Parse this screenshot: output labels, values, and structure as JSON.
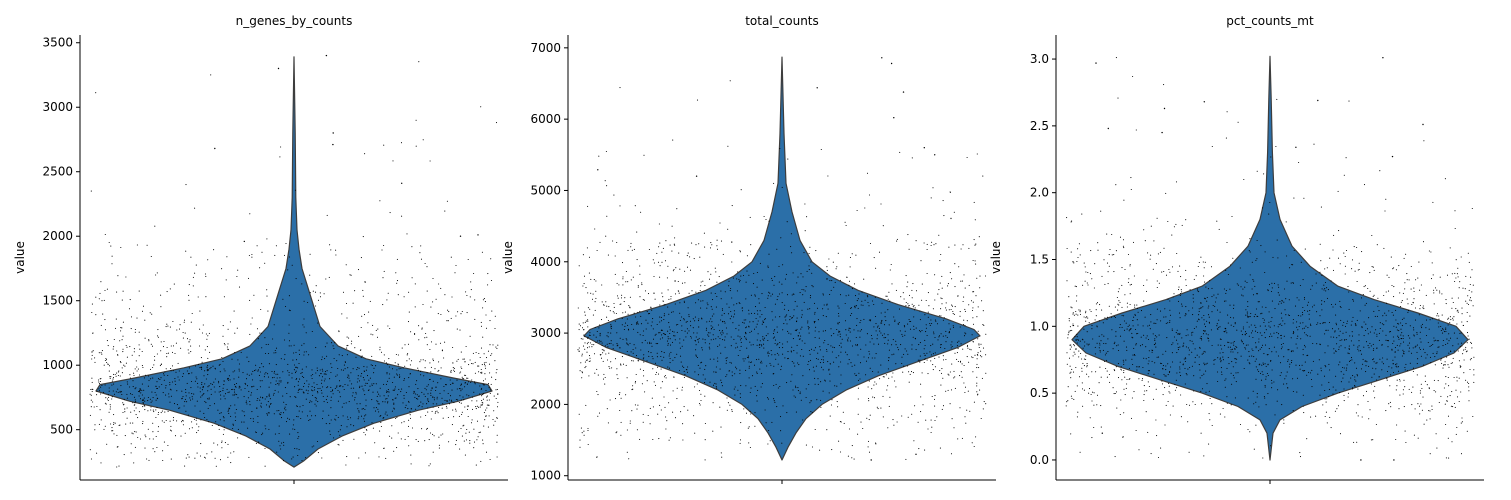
{
  "chart_data": [
    {
      "type": "violin",
      "title": "n_genes_by_counts",
      "ylabel": "value",
      "ylim": [
        110,
        3560
      ],
      "yticks": [
        500,
        1000,
        1500,
        2000,
        2500,
        3000,
        3500
      ],
      "ytick_labels": [
        "500",
        "1000",
        "1500",
        "2000",
        "2500",
        "3000",
        "3500"
      ],
      "min": 210,
      "max": 3390,
      "color": "#2b6fa8",
      "profile": [
        {
          "v": 210,
          "w": 0.0
        },
        {
          "v": 260,
          "w": 0.05
        },
        {
          "v": 350,
          "w": 0.12
        },
        {
          "v": 450,
          "w": 0.24
        },
        {
          "v": 550,
          "w": 0.4
        },
        {
          "v": 650,
          "w": 0.62
        },
        {
          "v": 720,
          "w": 0.82
        },
        {
          "v": 800,
          "w": 0.99
        },
        {
          "v": 850,
          "w": 0.97
        },
        {
          "v": 900,
          "w": 0.8
        },
        {
          "v": 980,
          "w": 0.55
        },
        {
          "v": 1050,
          "w": 0.36
        },
        {
          "v": 1150,
          "w": 0.22
        },
        {
          "v": 1300,
          "w": 0.13
        },
        {
          "v": 1450,
          "w": 0.1
        },
        {
          "v": 1600,
          "w": 0.07
        },
        {
          "v": 1750,
          "w": 0.04
        },
        {
          "v": 1900,
          "w": 0.025
        },
        {
          "v": 2050,
          "w": 0.015
        },
        {
          "v": 2300,
          "w": 0.009
        },
        {
          "v": 2800,
          "w": 0.006
        },
        {
          "v": 3390,
          "w": 0.0
        }
      ],
      "points": [
        {
          "rel": [
            640,
            780,
            810,
            950,
            560,
            880,
            720,
            1000,
            430,
            1150,
            830,
            690,
            900,
            610,
            760,
            1080,
            350,
            1250,
            820,
            740,
            980,
            520,
            870,
            1400,
            660,
            790,
            1020,
            450,
            930,
            700,
            1550,
            840,
            590,
            760,
            1100,
            380,
            960,
            810,
            720,
            1300,
            650,
            890,
            1700,
            540,
            780,
            860,
            1000,
            470,
            730,
            1200,
            620,
            850,
            910,
            330,
            1050,
            770,
            690,
            1450,
            800,
            580,
            940,
            1180,
            500,
            760,
            870,
            1600,
            710,
            830,
            420,
            990,
            640,
            780,
            1350,
            560,
            900,
            740,
            820,
            1900,
            680,
            1050
          ]
        }
      ],
      "outliers": [
        2710,
        3300,
        2800,
        2410,
        2680,
        3400,
        2010,
        1960,
        2000
      ]
    },
    {
      "type": "violin",
      "title": "total_counts",
      "ylabel": "value",
      "ylim": [
        940,
        7180
      ],
      "yticks": [
        1000,
        2000,
        3000,
        4000,
        5000,
        6000,
        7000
      ],
      "ytick_labels": [
        "1000",
        "2000",
        "3000",
        "4000",
        "5000",
        "6000",
        "7000"
      ],
      "min": 1220,
      "max": 6870,
      "color": "#2b6fa8",
      "profile": [
        {
          "v": 1220,
          "w": 0.0
        },
        {
          "v": 1400,
          "w": 0.03
        },
        {
          "v": 1600,
          "w": 0.07
        },
        {
          "v": 1800,
          "w": 0.12
        },
        {
          "v": 2000,
          "w": 0.2
        },
        {
          "v": 2200,
          "w": 0.32
        },
        {
          "v": 2400,
          "w": 0.48
        },
        {
          "v": 2600,
          "w": 0.68
        },
        {
          "v": 2800,
          "w": 0.88
        },
        {
          "v": 2960,
          "w": 0.99
        },
        {
          "v": 3050,
          "w": 0.96
        },
        {
          "v": 3200,
          "w": 0.82
        },
        {
          "v": 3400,
          "w": 0.58
        },
        {
          "v": 3600,
          "w": 0.38
        },
        {
          "v": 3800,
          "w": 0.24
        },
        {
          "v": 4000,
          "w": 0.15
        },
        {
          "v": 4300,
          "w": 0.09
        },
        {
          "v": 4700,
          "w": 0.05
        },
        {
          "v": 5100,
          "w": 0.02
        },
        {
          "v": 5800,
          "w": 0.01
        },
        {
          "v": 6870,
          "w": 0.0
        }
      ],
      "outliers": [
        6780,
        6380,
        6020,
        5290,
        6860,
        6440,
        5600,
        5500,
        5200,
        1220,
        1300
      ]
    },
    {
      "type": "violin",
      "title": "pct_counts_mt",
      "ylabel": "value",
      "ylim": [
        -0.15,
        3.18
      ],
      "yticks": [
        0.0,
        0.5,
        1.0,
        1.5,
        2.0,
        2.5,
        3.0
      ],
      "ytick_labels": [
        "0.0",
        "0.5",
        "1.0",
        "1.5",
        "2.0",
        "2.5",
        "3.0"
      ],
      "min": 0.0,
      "max": 3.02,
      "color": "#2b6fa8",
      "profile": [
        {
          "v": 0.0,
          "w": 0.0
        },
        {
          "v": 0.2,
          "w": 0.015
        },
        {
          "v": 0.3,
          "w": 0.05
        },
        {
          "v": 0.4,
          "w": 0.16
        },
        {
          "v": 0.5,
          "w": 0.34
        },
        {
          "v": 0.6,
          "w": 0.55
        },
        {
          "v": 0.7,
          "w": 0.76
        },
        {
          "v": 0.8,
          "w": 0.92
        },
        {
          "v": 0.9,
          "w": 0.99
        },
        {
          "v": 1.0,
          "w": 0.93
        },
        {
          "v": 1.1,
          "w": 0.74
        },
        {
          "v": 1.2,
          "w": 0.52
        },
        {
          "v": 1.3,
          "w": 0.34
        },
        {
          "v": 1.45,
          "w": 0.2
        },
        {
          "v": 1.6,
          "w": 0.11
        },
        {
          "v": 1.8,
          "w": 0.05
        },
        {
          "v": 2.0,
          "w": 0.02
        },
        {
          "v": 2.3,
          "w": 0.012
        },
        {
          "v": 2.7,
          "w": 0.006
        },
        {
          "v": 3.02,
          "w": 0.0
        }
      ],
      "outliers": [
        3.01,
        2.97,
        2.69,
        2.51,
        2.48,
        2.63,
        2.68,
        2.45,
        2.27,
        2.34,
        0.0,
        0.0,
        0.2
      ]
    }
  ]
}
